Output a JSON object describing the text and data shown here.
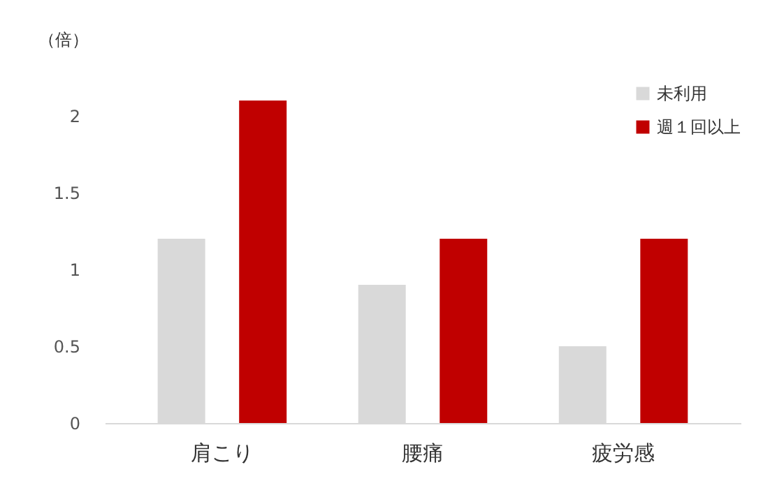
{
  "chart_data": {
    "type": "bar",
    "ylabel": "（倍）",
    "categories": [
      "肩こり",
      "腰痛",
      "疲労感"
    ],
    "series": [
      {
        "name": "未利用",
        "color": "#d9d9d9",
        "values": [
          1.2,
          0.9,
          0.5
        ]
      },
      {
        "name": "週１回以上",
        "color": "#c00000",
        "values": [
          2.1,
          1.2,
          1.2
        ]
      }
    ],
    "ylim": [
      0,
      2.2
    ],
    "yticks": [
      0,
      0.5,
      1,
      1.5,
      2
    ],
    "grid": false,
    "legend": "top right"
  }
}
